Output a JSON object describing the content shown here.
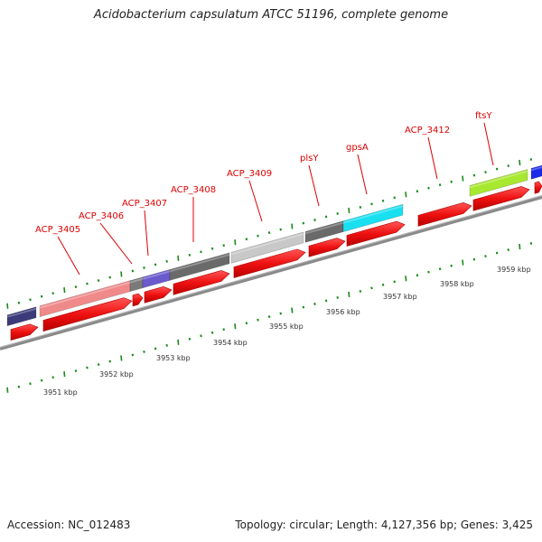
{
  "title": "Acidobacterium capsulatum ATCC 51196, complete genome",
  "accession": "Accession: NC_012483",
  "summary": "Topology: circular; Length: 4,127,356 bp; Genes: 3,425",
  "scale_labels": [
    "3951 kbp",
    "3952 kbp",
    "3953 kbp",
    "3954 kbp",
    "3955 kbp",
    "3956 kbp",
    "3957 kbp",
    "3958 kbp",
    "3959 kbp"
  ],
  "gene_labels": [
    "ACP_3405",
    "ACP_3406",
    "ACP_3407",
    "ACP_3408",
    "ACP_3409",
    "plsY",
    "gpsA",
    "ACP_3412",
    "ftsY"
  ],
  "colors": {
    "cds": "#ee1111",
    "label": "#dd0000",
    "tick": "#1a8a1a",
    "backbone": "#8a8a8a"
  },
  "feature_colors": [
    "#3c3a7a",
    "#f08a8a",
    "#7a7a7a",
    "#6a5acd",
    "#6a6a6a",
    "#c8c8c8",
    "#6a6a6a",
    "#18e0f0",
    "#a8e830",
    "#1a2ae8"
  ]
}
